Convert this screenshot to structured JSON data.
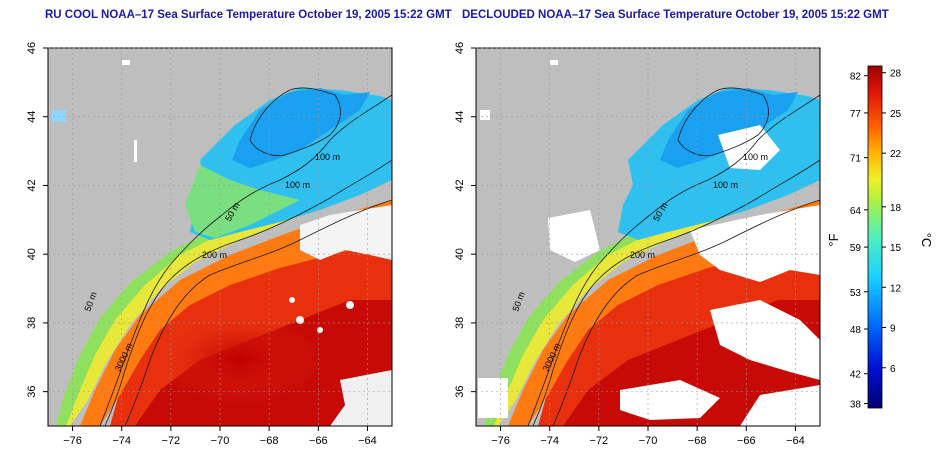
{
  "panels": [
    {
      "title": "RU COOL NOAA–17 Sea Surface Temperature October 19, 2005 15:22 GMT",
      "contour_labels": [
        "100 m",
        "100 m",
        "50 m",
        "200 m",
        "50 m",
        "3000 m"
      ]
    },
    {
      "title": "DECLOUDED NOAA–17 Sea Surface Temperature October 19, 2005 15:22 GMT",
      "contour_labels": [
        "100 m",
        "100 m",
        "50 m",
        "200 m",
        "50 m",
        "3000 m"
      ]
    }
  ],
  "axes": {
    "x_ticks": [
      "−76",
      "−74",
      "−72",
      "−70",
      "−68",
      "−66",
      "−64"
    ],
    "y_ticks": [
      "46",
      "44",
      "42",
      "40",
      "38",
      "36"
    ],
    "xlim": [
      -77,
      -63
    ],
    "ylim": [
      35,
      46
    ]
  },
  "colorbar": {
    "fahrenheit_label": "°F",
    "celsius_label": "°C",
    "fahrenheit_ticks": [
      "82",
      "77",
      "71",
      "64",
      "59",
      "53",
      "48",
      "42",
      "38"
    ],
    "celsius_ticks": [
      "28",
      "25",
      "22",
      "18",
      "15",
      "12",
      "9",
      "6"
    ],
    "range_c": [
      3,
      28.5
    ]
  },
  "colors": {
    "land": "#bebebe",
    "cloud": "#ffffff",
    "title": "#1a1aa6",
    "warm": "#d21010",
    "cold": "#1aa0f0"
  }
}
